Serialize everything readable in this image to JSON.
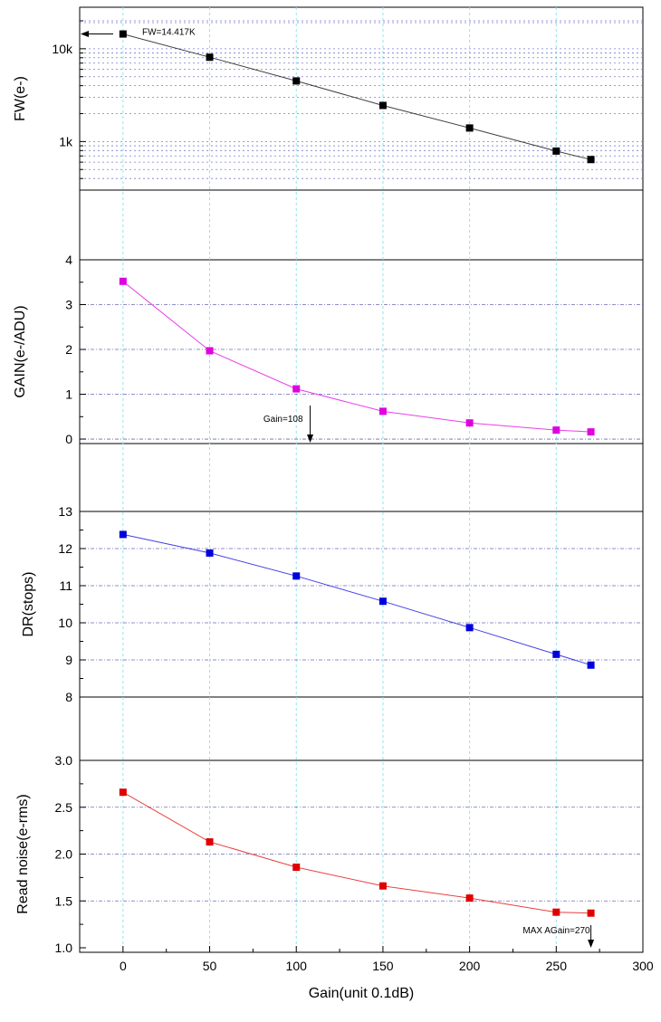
{
  "chart_data": {
    "type": "line",
    "figure_xlabel": "Gain(unit 0.1dB)",
    "xlim": [
      -25,
      300
    ],
    "x_ticks": [
      0,
      50,
      100,
      150,
      200,
      250,
      300
    ],
    "x": [
      0,
      50,
      100,
      150,
      200,
      250,
      270
    ],
    "panels": [
      {
        "key": "fw",
        "ylabel": "FW(e-)",
        "yscale": "log",
        "ylim": [
          300,
          28000
        ],
        "y_ticks": [
          {
            "v": 1000,
            "label": "1k"
          },
          {
            "v": 10000,
            "label": "10k"
          }
        ],
        "series_name": "FW",
        "color": "#000000",
        "values": [
          14417,
          8100,
          4500,
          2450,
          1400,
          790,
          640
        ],
        "annotation": {
          "text": "FW=14.417K",
          "x": 0,
          "y": 14417
        }
      },
      {
        "key": "gain",
        "ylabel": "GAIN(e-/ADU)",
        "yscale": "linear",
        "ylim": [
          -0.1,
          4
        ],
        "y_ticks": [
          {
            "v": 0,
            "label": "0"
          },
          {
            "v": 1,
            "label": "1"
          },
          {
            "v": 2,
            "label": "2"
          },
          {
            "v": 3,
            "label": "3"
          },
          {
            "v": 4,
            "label": "4"
          }
        ],
        "series_name": "GAIN",
        "color": "#e000e0",
        "values": [
          3.52,
          1.97,
          1.12,
          0.62,
          0.36,
          0.2,
          0.16
        ],
        "annotation": {
          "text": "Gain=108",
          "x": 108,
          "y": 0
        }
      },
      {
        "key": "dr",
        "ylabel": "DR(stops)",
        "yscale": "linear",
        "ylim": [
          8,
          13
        ],
        "y_ticks": [
          {
            "v": 8,
            "label": "8"
          },
          {
            "v": 9,
            "label": "9"
          },
          {
            "v": 10,
            "label": "10"
          },
          {
            "v": 11,
            "label": "11"
          },
          {
            "v": 12,
            "label": "12"
          },
          {
            "v": 13,
            "label": "13"
          }
        ],
        "series_name": "DR",
        "color": "#0000dd",
        "values": [
          12.38,
          11.88,
          11.26,
          10.58,
          9.87,
          9.15,
          8.86
        ]
      },
      {
        "key": "rn",
        "ylabel": "Read noise(e-rms)",
        "yscale": "linear",
        "ylim": [
          1.0,
          3.0
        ],
        "y_ticks": [
          {
            "v": 1.0,
            "label": "1.0"
          },
          {
            "v": 1.5,
            "label": "1.5"
          },
          {
            "v": 2.0,
            "label": "2.0"
          },
          {
            "v": 2.5,
            "label": "2.5"
          },
          {
            "v": 3.0,
            "label": "3.0"
          }
        ],
        "series_name": "Read noise",
        "color": "#e00000",
        "values": [
          2.66,
          2.13,
          1.86,
          1.66,
          1.53,
          1.38,
          1.37
        ],
        "annotation": {
          "text": "MAX AGain=270",
          "x": 270,
          "y": 1.37
        }
      }
    ]
  }
}
